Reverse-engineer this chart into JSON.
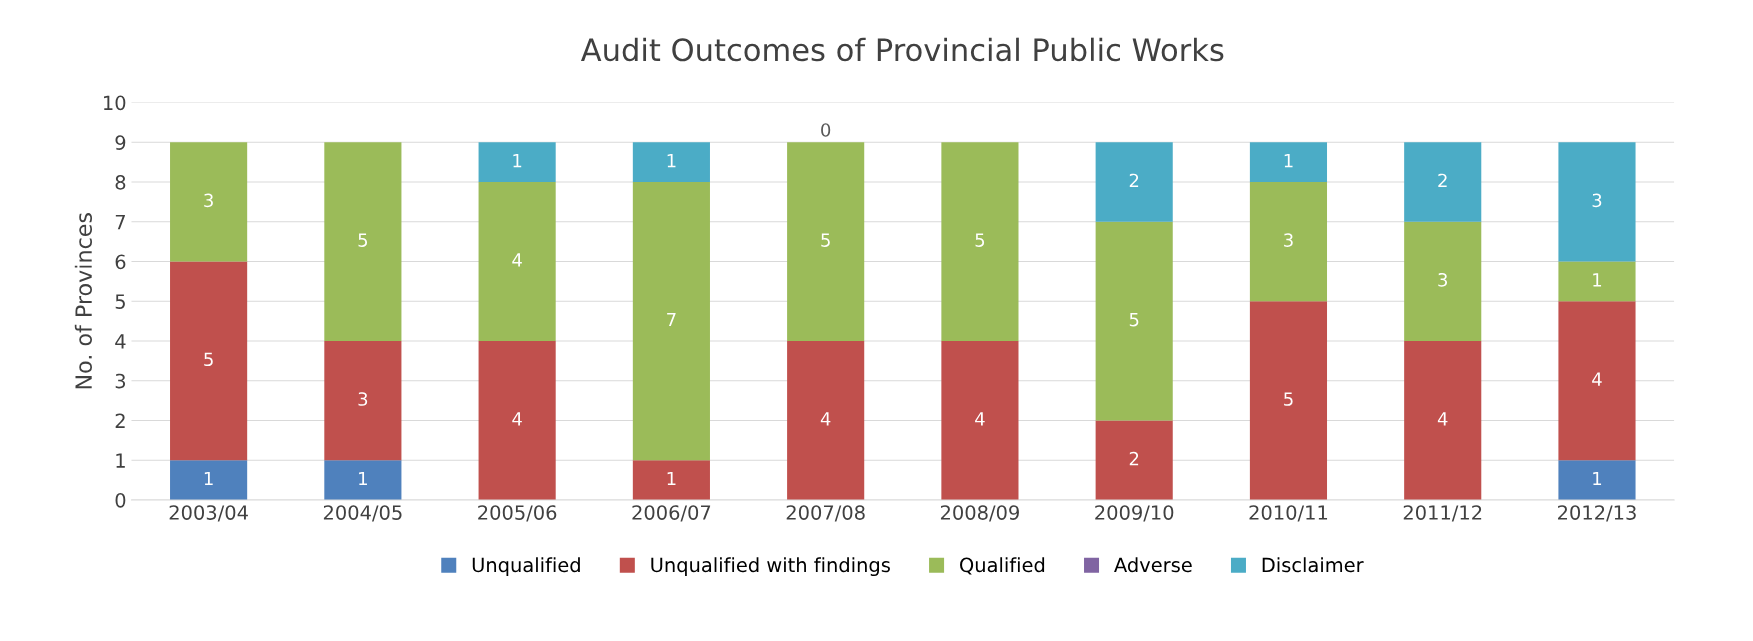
{
  "chart_data": {
    "type": "bar",
    "title": "Audit Outcomes of Provincial Public Works",
    "ylabel": "No. of Provinces",
    "categories": [
      "2003/04",
      "2004/05",
      "2005/06",
      "2006/07",
      "2007/08",
      "2008/09",
      "2009/10",
      "2010/11",
      "2011/12",
      "2012/13"
    ],
    "stacked": true,
    "ylim": [
      0,
      10
    ],
    "yticks": [
      0,
      1,
      2,
      3,
      4,
      5,
      6,
      7,
      8,
      9,
      10
    ],
    "grid": "y",
    "legend": "bottom",
    "series": [
      {
        "name": "Unqualified",
        "color": "#4f81bd",
        "values": [
          1,
          1,
          0,
          0,
          0,
          0,
          0,
          0,
          0,
          1
        ],
        "value_labels": [
          "1",
          "1",
          null,
          null,
          null,
          null,
          null,
          null,
          null,
          "1"
        ]
      },
      {
        "name": "Unqualified with findings",
        "color": "#c0504d",
        "values": [
          5,
          3,
          4,
          1,
          4,
          4,
          2,
          5,
          4,
          4
        ],
        "value_labels": [
          "5",
          "3",
          "4",
          "1",
          "4",
          "4",
          "2",
          "5",
          "4",
          "4"
        ]
      },
      {
        "name": "Qualified",
        "color": "#9bbb59",
        "values": [
          3,
          5,
          4,
          7,
          5,
          5,
          5,
          3,
          3,
          1
        ],
        "value_labels": [
          "3",
          "5",
          "4",
          "7",
          "5",
          "5",
          "5",
          "3",
          "3",
          "1"
        ]
      },
      {
        "name": "Adverse",
        "color": "#8064a2",
        "values": [
          0,
          0,
          0,
          0,
          0,
          0,
          0,
          0,
          0,
          0
        ],
        "value_labels": [
          null,
          null,
          null,
          null,
          null,
          null,
          null,
          null,
          null,
          null
        ]
      },
      {
        "name": "Disclaimer",
        "color": "#4bacc6",
        "values": [
          0,
          0,
          1,
          1,
          0,
          0,
          2,
          1,
          2,
          3
        ],
        "value_labels": [
          null,
          null,
          "1",
          "1",
          "0",
          null,
          "2",
          "1",
          "2",
          "3"
        ]
      }
    ]
  }
}
